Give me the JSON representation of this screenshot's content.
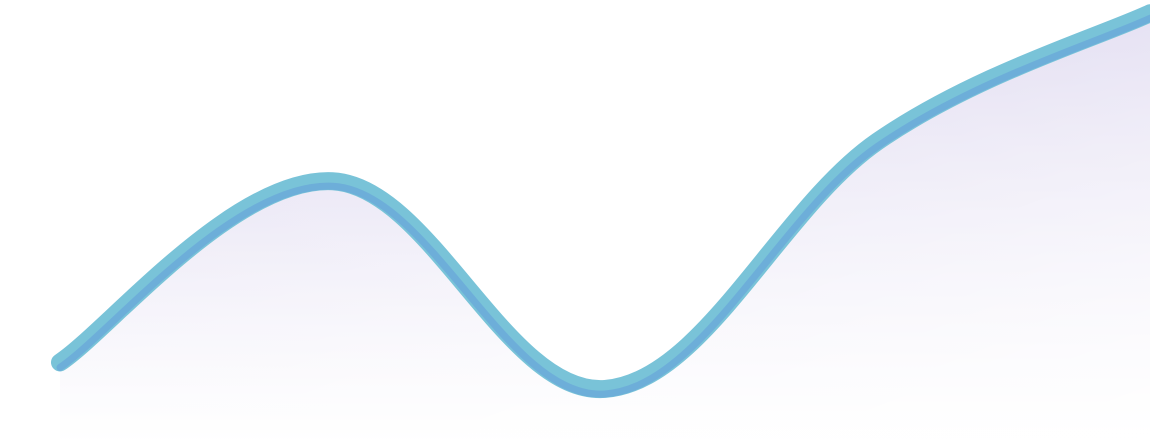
{
  "chart_data": {
    "type": "area",
    "title": "",
    "xlabel": "",
    "ylabel": "",
    "grid": false,
    "legend": "none",
    "x": [
      1,
      2,
      3,
      4,
      5
    ],
    "series": [
      {
        "values": [
          1.8,
          5.9,
          1.2,
          6.8,
          9.7
        ]
      }
    ],
    "xlim": [
      1,
      5
    ],
    "ylim": [
      0,
      10
    ],
    "colors": {
      "stroke_outer": "#79C3D8",
      "stroke_inner": "#6AA9DA",
      "fill_top": "#D4CDEB",
      "fill_bottom": "#FFFFFF"
    }
  }
}
